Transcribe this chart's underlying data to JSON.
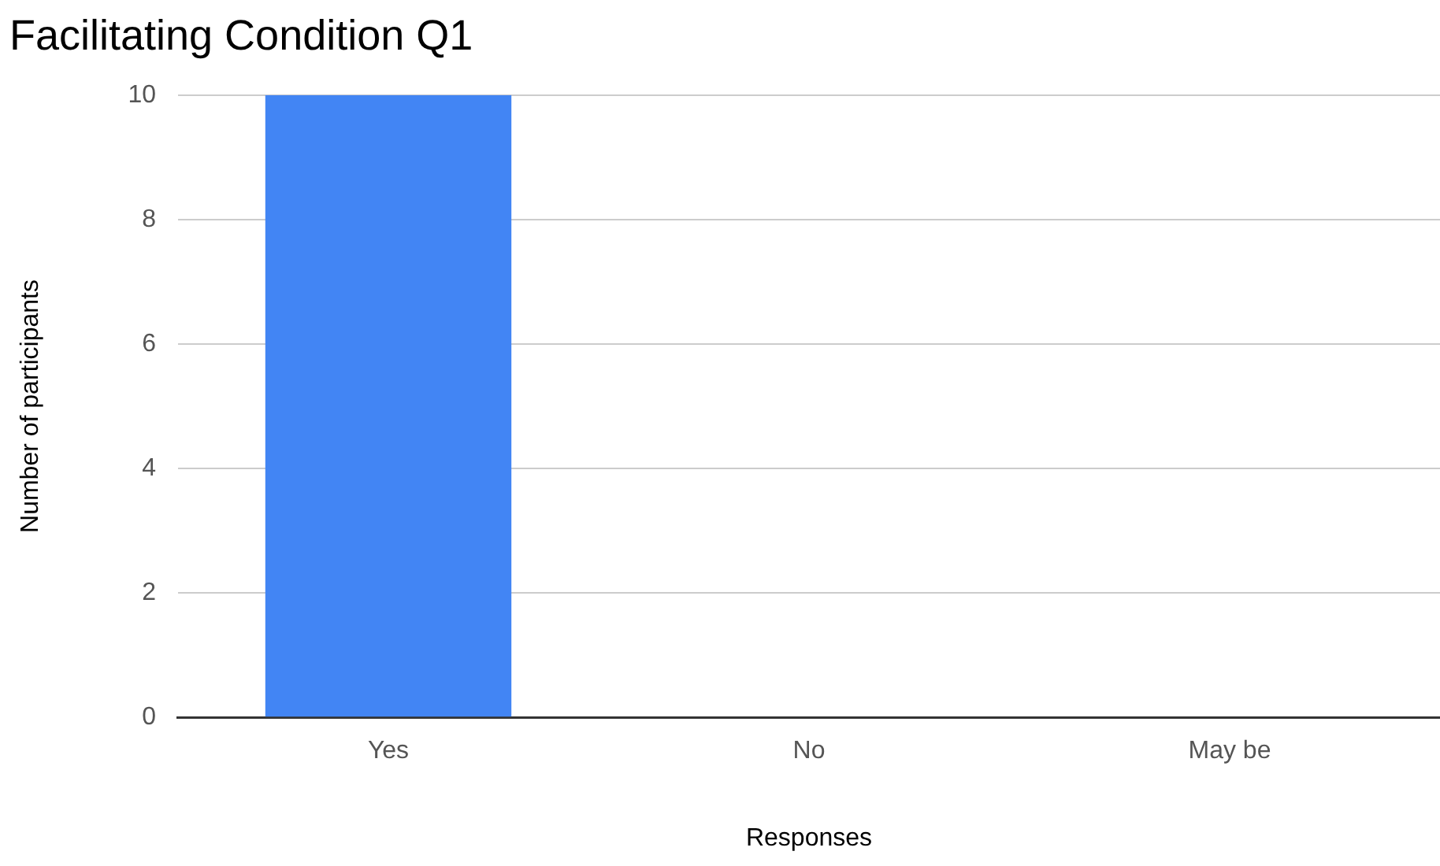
{
  "chart_data": {
    "type": "bar",
    "title": "Facilitating Condition Q1",
    "xlabel": "Responses",
    "ylabel": "Number of participants",
    "categories": [
      "Yes",
      "No",
      "May be"
    ],
    "values": [
      10,
      0,
      0
    ],
    "color": "#4285f4",
    "ylim": [
      0,
      10
    ],
    "yticks": [
      0,
      2,
      4,
      6,
      8,
      10
    ],
    "grid": "y",
    "legend": false
  }
}
